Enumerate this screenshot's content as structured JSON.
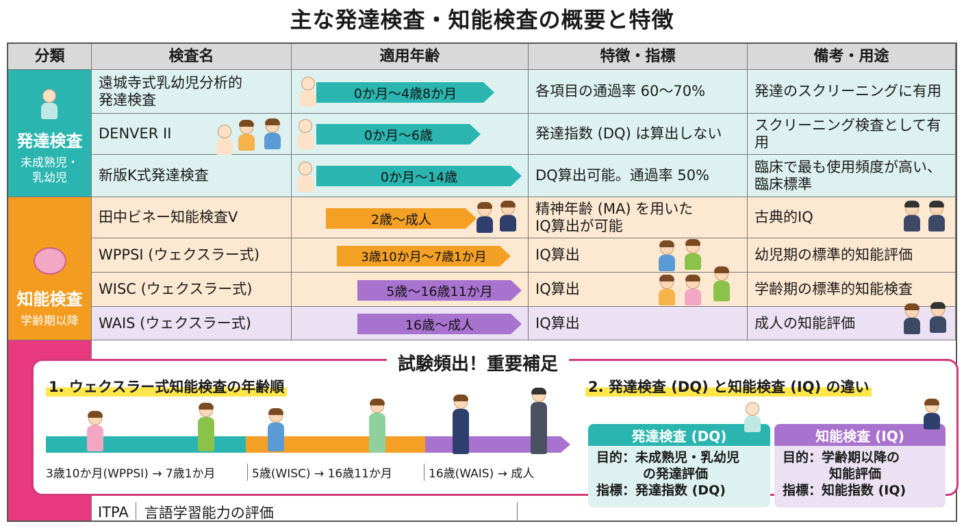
{
  "title": "主な発達検査・知能検査の概要と特徴",
  "headers": [
    "分類",
    "検査名",
    "適用年齢",
    "特徴・指標",
    "備考・用途"
  ],
  "categories": [
    {
      "label": "発達検査",
      "sub": "未成熟児・\n乳幼児",
      "color": "#2ab5b0"
    },
    {
      "label": "知能検査",
      "sub": "学齢期以降",
      "color": "#f39c1f"
    }
  ],
  "rows": [
    {
      "name": "遠城寺式乳幼児分析的\n発達検査",
      "age": "0か月〜4歳8か月",
      "feature": "各項目の通過率 60〜70%",
      "note": "発達のスクリーニングに有用"
    },
    {
      "name": "DENVER II",
      "age": "0か月〜6歳",
      "feature": "発達指数 (DQ) は算出しない",
      "note": "スクリーニング検査として有用"
    },
    {
      "name": "新版K式発達検査",
      "age": "0か月〜14歳",
      "feature": "DQ算出可能。通過率 50%",
      "note": "臨床で最も使用頻度が高い、\n臨床標準"
    },
    {
      "name": "田中ビネー知能検査V",
      "age": "2歳〜成人",
      "feature": "精神年齢 (MA) を用いた\nIQ算出が可能",
      "note": "古典的IQ"
    },
    {
      "name": "WPPSI (ウェクスラー式)",
      "age": "3歳10か月〜7歳1か月",
      "feature": "IQ算出",
      "note": "幼児期の標準的知能評価"
    },
    {
      "name": "WISC (ウェクスラー式)",
      "age": "5歳〜16歳11か月",
      "feature": "IQ算出",
      "note": "学齢期の標準的知能検査"
    },
    {
      "name": "WAIS (ウェクスラー式)",
      "age": "16歳〜成人",
      "feature": "IQ算出",
      "note": "成人の知能評価"
    }
  ],
  "supplement": {
    "title": "試験頻出！重要補足",
    "section1": "1. ウェクスラー式知能検査の年齢順",
    "timeline": [
      "3歳10か月(WPPSI) → 7歳1か月",
      "5歳(WISC) → 16歳11か月",
      "16歳(WAIS) → 成人"
    ],
    "section2": "2. 発達検査 (DQ) と知能検査 (IQ) の違い",
    "dq": {
      "head": "発達検査 (DQ)",
      "purpose": "目的：未成熟児・乳幼児",
      "purpose2": "の発達評価",
      "index": "指標：発達指数 (DQ)"
    },
    "iq": {
      "head": "知能検査 (IQ)",
      "purpose": "目的：学齢期以降の",
      "purpose2": "知能評価",
      "index": "指標：知能指数 (IQ)"
    }
  },
  "last_row": {
    "name": "ITPA",
    "desc": "言語学習能力の評価"
  },
  "colors": {
    "teal": "#2ab5b0",
    "orange": "#f39c1f",
    "purple": "#a872cf",
    "pink": "#e8397f"
  }
}
